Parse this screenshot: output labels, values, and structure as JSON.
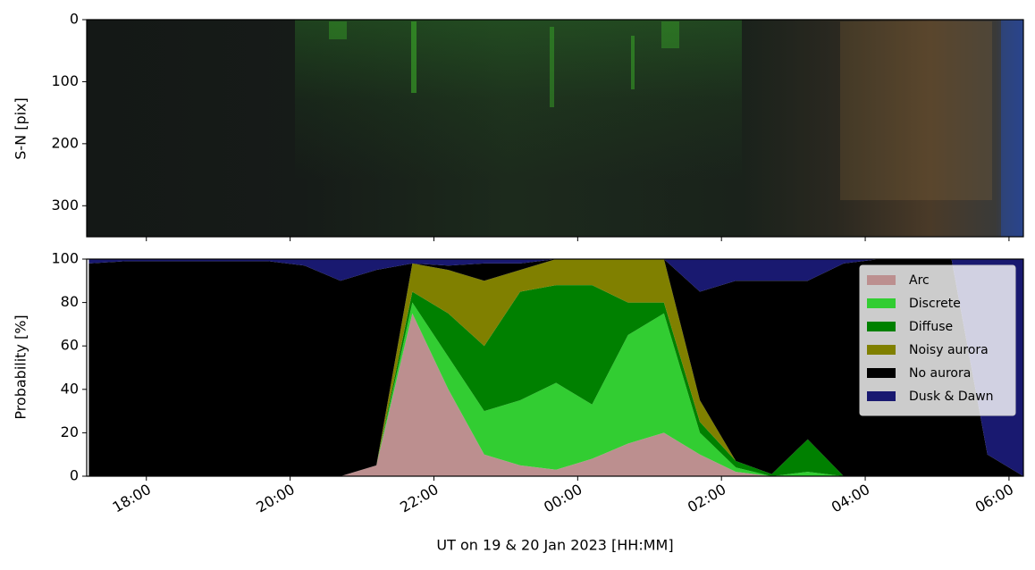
{
  "chart_data": [
    {
      "type": "image",
      "ylabel": "S-N [pix]",
      "ylim": [
        0,
        350
      ],
      "y_inverted": true,
      "yticks": [
        0,
        100,
        200,
        300
      ]
    },
    {
      "type": "stacked_area",
      "xlabel": "UT on 19 & 20 Jan 2023 [HH:MM]",
      "ylabel": "Probability [%]",
      "x": [
        17.2,
        17.7,
        18.2,
        18.7,
        19.2,
        19.7,
        20.2,
        20.7,
        21.2,
        21.7,
        22.2,
        22.7,
        23.2,
        23.7,
        24.2,
        24.7,
        25.2,
        25.7,
        26.2,
        26.7,
        27.2,
        27.7,
        28.2,
        28.7,
        29.2,
        29.7,
        30.2
      ],
      "series": [
        {
          "name": "Arc",
          "color": "#bc8f8f",
          "values": [
            0,
            0,
            0,
            0,
            0,
            0,
            0,
            0,
            5,
            75,
            40,
            10,
            5,
            3,
            8,
            15,
            20,
            10,
            2,
            0,
            0,
            0,
            0,
            0,
            0,
            0,
            0
          ]
        },
        {
          "name": "Discrete",
          "color": "#32cd32",
          "values": [
            0,
            0,
            0,
            0,
            0,
            0,
            0,
            0,
            0,
            5,
            15,
            20,
            30,
            40,
            25,
            50,
            55,
            10,
            2,
            0,
            2,
            0,
            0,
            0,
            0,
            0,
            0
          ]
        },
        {
          "name": "Diffuse",
          "color": "#008000",
          "values": [
            0,
            0,
            0,
            0,
            0,
            0,
            0,
            0,
            0,
            5,
            20,
            30,
            50,
            45,
            55,
            15,
            5,
            5,
            3,
            1,
            15,
            0,
            0,
            0,
            0,
            0,
            0
          ]
        },
        {
          "name": "Noisy aurora",
          "color": "#808000",
          "values": [
            0,
            0,
            0,
            0,
            0,
            0,
            0,
            0,
            0,
            13,
            20,
            30,
            10,
            12,
            12,
            20,
            20,
            10,
            0,
            0,
            0,
            0,
            0,
            0,
            0,
            0,
            0
          ]
        },
        {
          "name": "No aurora",
          "color": "#000000",
          "values": [
            98,
            99,
            99,
            99,
            99,
            99,
            97,
            90,
            90,
            0,
            2,
            8,
            3,
            0,
            0,
            0,
            0,
            50,
            83,
            89,
            73,
            98,
            100,
            100,
            100,
            10,
            0
          ]
        },
        {
          "name": "Dusk & Dawn",
          "color": "#191970",
          "values": [
            2,
            1,
            1,
            1,
            1,
            1,
            3,
            10,
            5,
            2,
            3,
            2,
            2,
            0,
            0,
            0,
            0,
            15,
            10,
            10,
            10,
            2,
            0,
            0,
            0,
            90,
            100
          ]
        }
      ],
      "xlim": [
        17.17,
        30.2
      ],
      "xticks": [
        {
          "value": 18,
          "label": "18:00"
        },
        {
          "value": 20,
          "label": "20:00"
        },
        {
          "value": 22,
          "label": "22:00"
        },
        {
          "value": 24,
          "label": "00:00"
        },
        {
          "value": 26,
          "label": "02:00"
        },
        {
          "value": 28,
          "label": "04:00"
        },
        {
          "value": 30,
          "label": "06:00"
        }
      ],
      "ylim": [
        0,
        100
      ],
      "yticks": [
        0,
        20,
        40,
        60,
        80,
        100
      ],
      "legend": "upper right"
    }
  ]
}
